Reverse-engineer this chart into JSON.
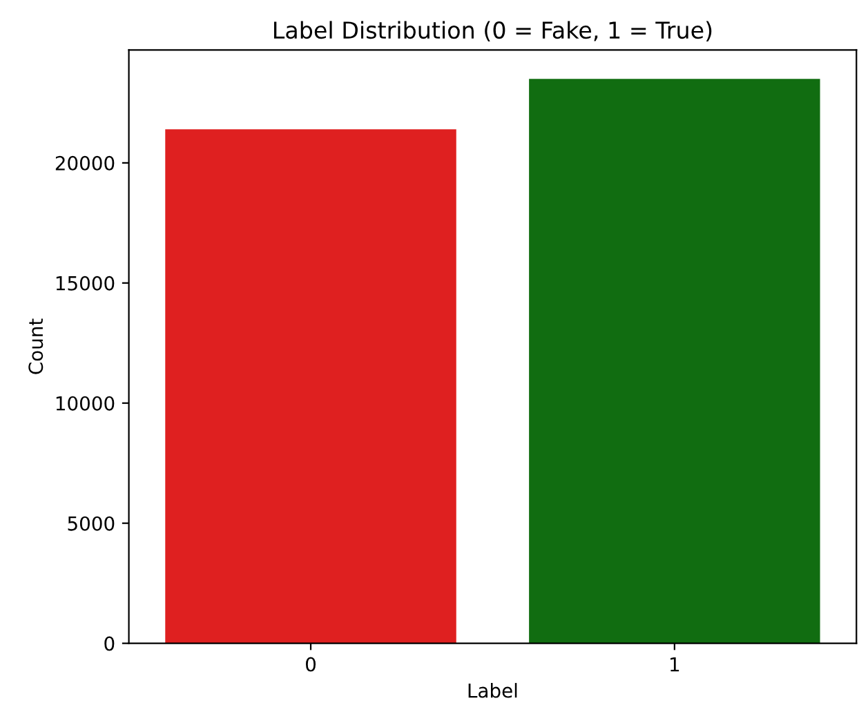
{
  "chart_data": {
    "type": "bar",
    "title": "Label Distribution (0 = Fake, 1 = True)",
    "xlabel": "Label",
    "ylabel": "Count",
    "categories": [
      "0",
      "1"
    ],
    "values": [
      21400,
      23500
    ],
    "colors": [
      "#df2020",
      "#116d11"
    ],
    "ylim": [
      0,
      24700
    ],
    "yticks": [
      0,
      5000,
      10000,
      15000,
      20000
    ],
    "grid": false,
    "legend": false
  }
}
